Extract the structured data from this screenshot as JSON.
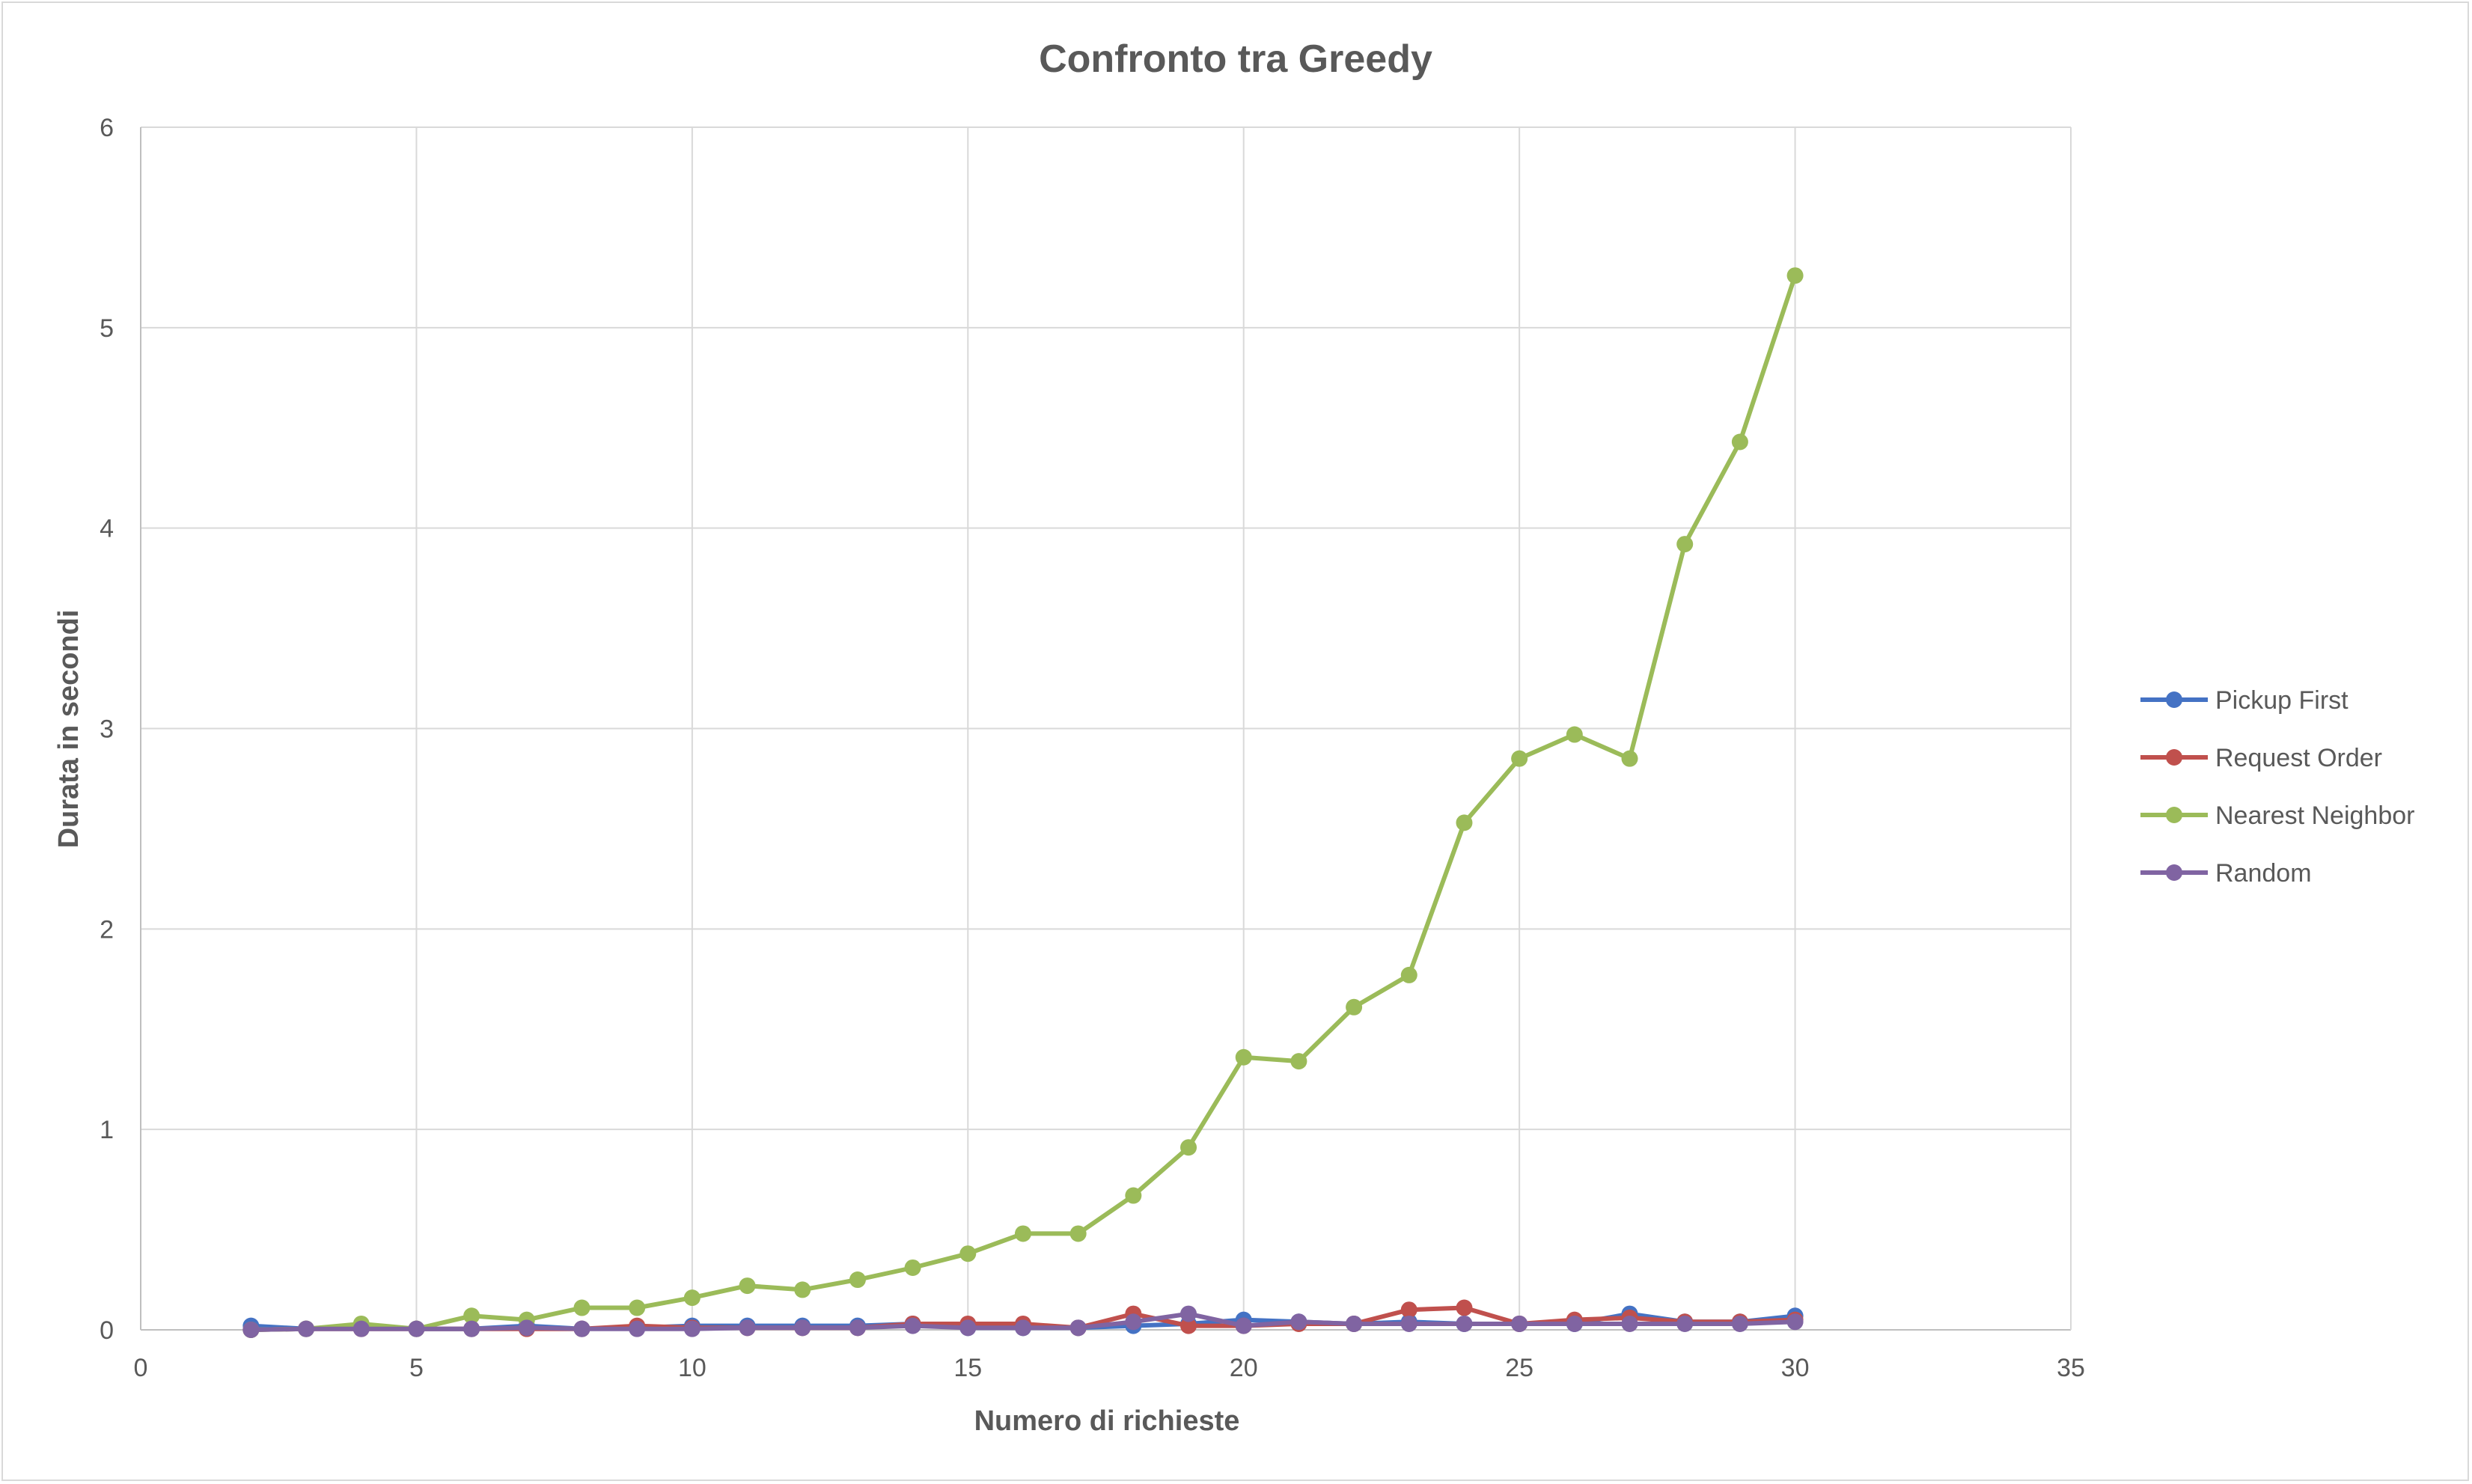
{
  "chart_data": {
    "type": "scatter",
    "title": "Confronto tra Greedy",
    "xlabel": "Numero di richieste",
    "ylabel": "Durata in secondi",
    "xlim": [
      0,
      35
    ],
    "ylim": [
      0,
      6
    ],
    "xticks": [
      0,
      5,
      10,
      15,
      20,
      25,
      30,
      35
    ],
    "yticks": [
      0,
      1,
      2,
      3,
      4,
      5,
      6
    ],
    "grid": true,
    "legend_position": "right",
    "x": [
      2,
      3,
      4,
      5,
      6,
      7,
      8,
      9,
      10,
      11,
      12,
      13,
      14,
      15,
      16,
      17,
      18,
      19,
      20,
      21,
      22,
      23,
      24,
      25,
      26,
      27,
      28,
      29,
      30
    ],
    "series": [
      {
        "name": "Pickup First",
        "color": "#4472c4",
        "values": [
          0.02,
          0.005,
          0.01,
          0.005,
          0.005,
          0.02,
          0.005,
          0.01,
          0.02,
          0.02,
          0.02,
          0.02,
          0.03,
          0.01,
          0.01,
          0.01,
          0.02,
          0.03,
          0.05,
          0.04,
          0.03,
          0.04,
          0.03,
          0.03,
          0.03,
          0.08,
          0.04,
          0.04,
          0.07
        ]
      },
      {
        "name": "Request Order",
        "color": "#c0504d",
        "values": [
          0.0,
          0.005,
          0.005,
          0.005,
          0.005,
          0.005,
          0.005,
          0.02,
          0.01,
          0.01,
          0.01,
          0.01,
          0.03,
          0.03,
          0.03,
          0.01,
          0.08,
          0.02,
          0.02,
          0.03,
          0.03,
          0.1,
          0.11,
          0.03,
          0.05,
          0.06,
          0.04,
          0.04,
          0.05
        ]
      },
      {
        "name": "Nearest Neighbor",
        "color": "#9bbb59",
        "values": [
          0.0,
          0.005,
          0.03,
          0.005,
          0.07,
          0.05,
          0.11,
          0.11,
          0.16,
          0.22,
          0.2,
          0.25,
          0.31,
          0.38,
          0.48,
          0.48,
          0.67,
          0.91,
          1.36,
          1.34,
          1.61,
          1.77,
          2.53,
          2.85,
          2.97,
          2.85,
          3.92,
          4.43,
          5.26
        ]
      },
      {
        "name": "Random",
        "color": "#8064a2",
        "values": [
          0.0,
          0.005,
          0.005,
          0.005,
          0.005,
          0.01,
          0.005,
          0.005,
          0.005,
          0.01,
          0.01,
          0.01,
          0.02,
          0.01,
          0.01,
          0.01,
          0.04,
          0.08,
          0.02,
          0.04,
          0.03,
          0.03,
          0.03,
          0.03,
          0.03,
          0.03,
          0.03,
          0.03,
          0.04
        ]
      }
    ]
  }
}
